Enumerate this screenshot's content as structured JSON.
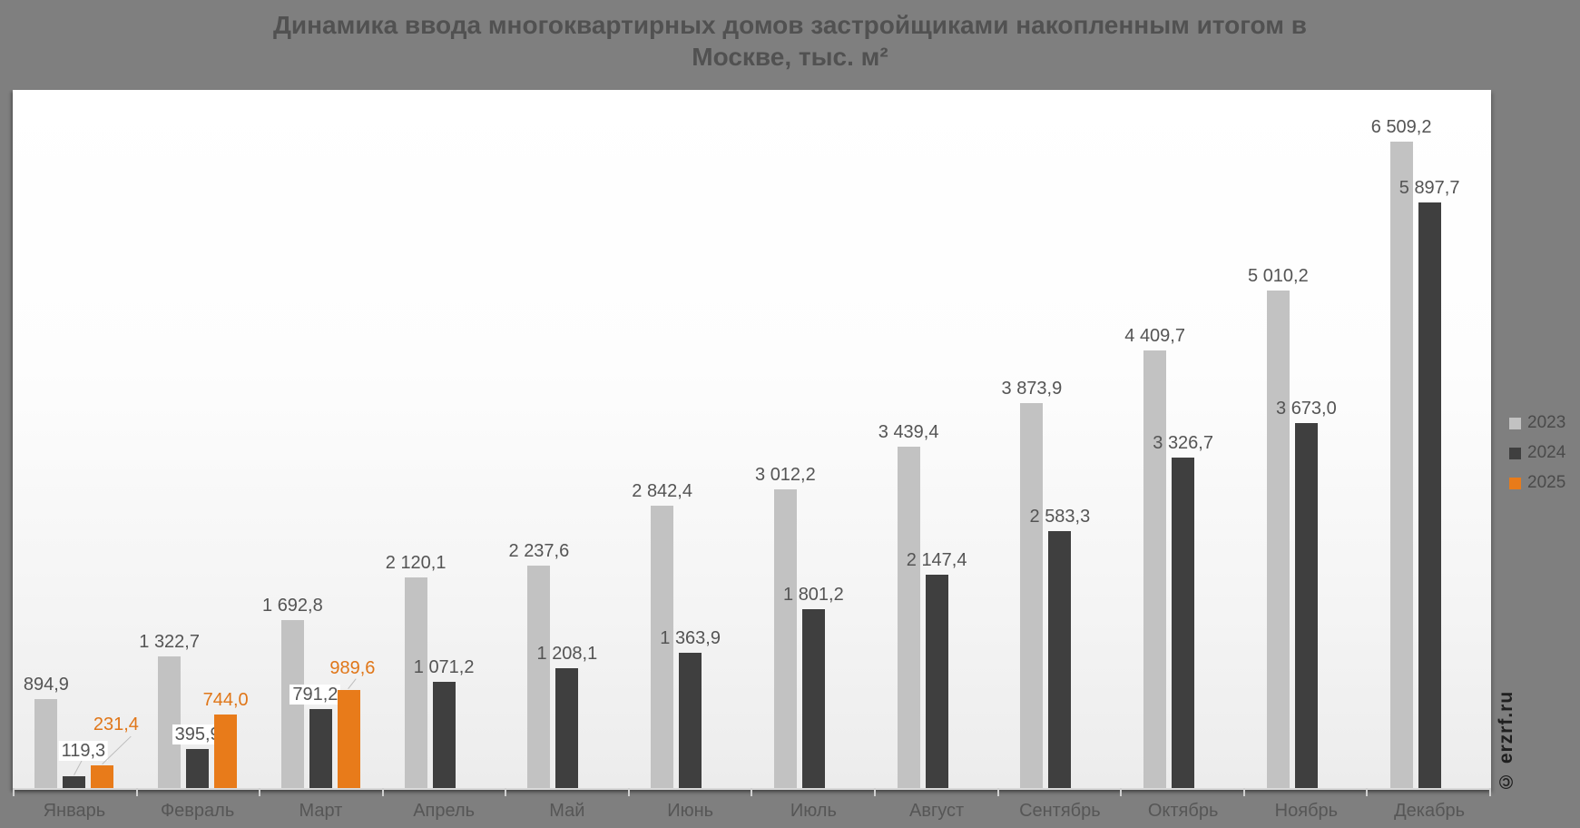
{
  "title_lines": [
    "Динамика ввода многоквартирных домов застройщиками накопленным итогом в",
    "Москве, тыс. м²"
  ],
  "watermark": "© erzrf.ru",
  "colors": {
    "background": "#7f7f7f",
    "bar_2023": "#c2c2c2",
    "bar_2024": "#3f3f3f",
    "bar_2025": "#e87b1a",
    "value_label": "#545454",
    "value_label_2025": "#e07618",
    "axis_text": "#565656",
    "tick": "#d0d0d0",
    "title_text": "#515151",
    "legend_text": "#4a4a4a",
    "leader_line": "#bdbdbd",
    "label_background": "#ffffff"
  },
  "legend": [
    {
      "label": "2023",
      "color": "#c2c2c2"
    },
    {
      "label": "2024",
      "color": "#3f3f3f"
    },
    {
      "label": "2025",
      "color": "#e87b1a"
    }
  ],
  "chart_data": {
    "type": "bar",
    "title": "Динамика ввода многоквартирных домов застройщиками накопленным итогом в Москве, тыс. м²",
    "xlabel": "",
    "ylabel": "",
    "ylim": [
      0,
      7030
    ],
    "grid": false,
    "legend_position": "right",
    "categories": [
      "Январь",
      "Февраль",
      "Март",
      "Апрель",
      "Май",
      "Июнь",
      "Июль",
      "Август",
      "Сентябрь",
      "Октябрь",
      "Ноябрь",
      "Декабрь"
    ],
    "series": [
      {
        "name": "2023",
        "color": "#c2c2c2",
        "values": [
          894.9,
          1322.7,
          1692.8,
          2120.1,
          2237.6,
          2842.4,
          3012.2,
          3439.4,
          3873.9,
          4409.7,
          5010.2,
          6509.2
        ],
        "labels": [
          "894,9",
          "1 322,7",
          "1 692,8",
          "2 120,1",
          "2 237,6",
          "2 842,4",
          "3 012,2",
          "3 439,4",
          "3 873,9",
          "4 409,7",
          "5 010,2",
          "6 509,2"
        ]
      },
      {
        "name": "2024",
        "color": "#3f3f3f",
        "values": [
          119.3,
          395.9,
          791.2,
          1071.2,
          1208.1,
          1363.9,
          1801.2,
          2147.4,
          2583.3,
          3326.7,
          3673.0,
          5897.7
        ],
        "labels": [
          "119,3",
          "395,9",
          "791,2",
          "1 071,2",
          "1 208,1",
          "1 363,9",
          "1 801,2",
          "2 147,4",
          "2 583,3",
          "3 326,7",
          "3 673,0",
          "5 897,7"
        ]
      },
      {
        "name": "2025",
        "color": "#e87b1a",
        "values": [
          231.4,
          744.0,
          989.6,
          null,
          null,
          null,
          null,
          null,
          null,
          null,
          null,
          null
        ],
        "labels": [
          "231,4",
          "744,0",
          "989,6"
        ]
      }
    ]
  },
  "label_layout": {
    "2024": {
      "0": {
        "dx": 10,
        "dy": 12,
        "bg": true,
        "leader": {
          "len": 18,
          "ang": -62
        }
      },
      "1": {
        "bg": true
      },
      "2": {
        "dx": -6,
        "bg": true
      }
    },
    "2025": {
      "0": {
        "dx": 15,
        "dy": 29,
        "leader": {
          "len": 44,
          "ang": -44
        }
      },
      "2": {
        "dx": 4,
        "dy": 8,
        "leader": {
          "len": 14,
          "ang": -52
        }
      }
    }
  }
}
